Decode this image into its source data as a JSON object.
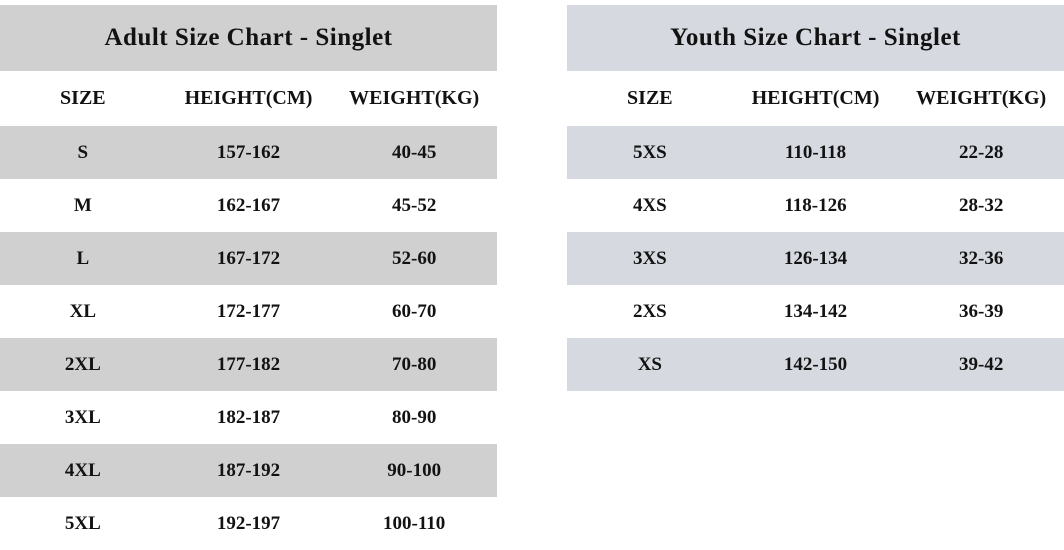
{
  "colors": {
    "background": "#ffffff",
    "text": "#121212",
    "adult_accent": "#d0d0d0",
    "youth_accent": "#d6dae0"
  },
  "chart_data": [
    {
      "type": "table",
      "title": "Adult Size Chart - Singlet",
      "accent": "#d0d0d0",
      "columns": [
        "SIZE",
        "HEIGHT(CM)",
        "WEIGHT(KG)"
      ],
      "rows": [
        [
          "S",
          "157-162",
          "40-45"
        ],
        [
          "M",
          "162-167",
          "45-52"
        ],
        [
          "L",
          "167-172",
          "52-60"
        ],
        [
          "XL",
          "172-177",
          "60-70"
        ],
        [
          "2XL",
          "177-182",
          "70-80"
        ],
        [
          "3XL",
          "182-187",
          "80-90"
        ],
        [
          "4XL",
          "187-192",
          "90-100"
        ],
        [
          "5XL",
          "192-197",
          "100-110"
        ]
      ]
    },
    {
      "type": "table",
      "title": "Youth Size Chart - Singlet",
      "accent": "#d6dae0",
      "columns": [
        "SIZE",
        "HEIGHT(CM)",
        "WEIGHT(KG)"
      ],
      "rows": [
        [
          "5XS",
          "110-118",
          "22-28"
        ],
        [
          "4XS",
          "118-126",
          "28-32"
        ],
        [
          "3XS",
          "126-134",
          "32-36"
        ],
        [
          "2XS",
          "134-142",
          "36-39"
        ],
        [
          "XS",
          "142-150",
          "39-42"
        ]
      ]
    }
  ]
}
